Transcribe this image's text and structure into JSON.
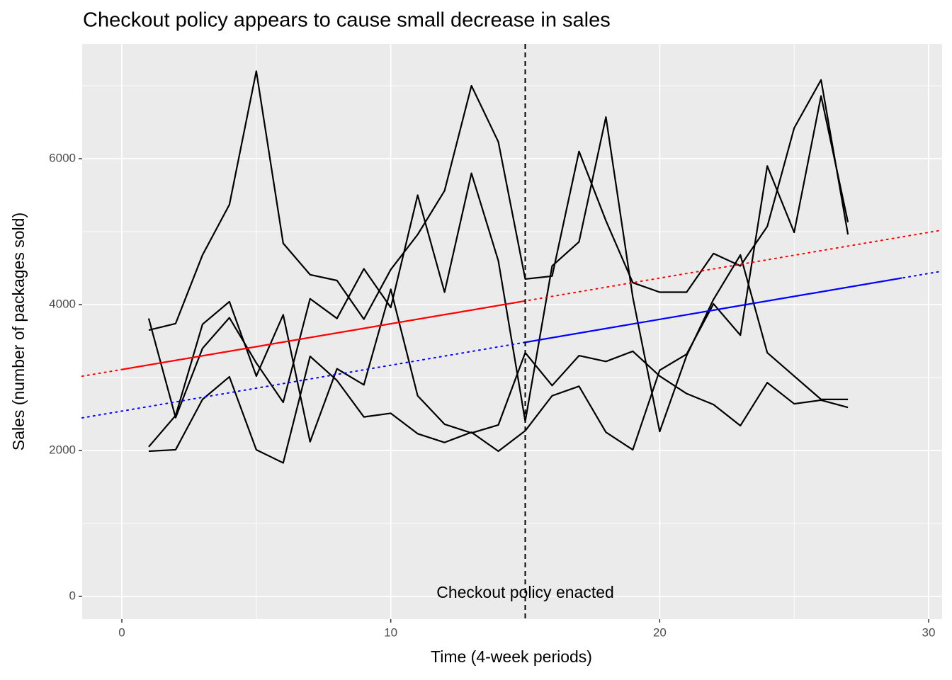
{
  "chart_data": {
    "type": "line",
    "title": "Checkout policy appears to cause small decrease in sales",
    "x_label": "Time (4-week periods)",
    "y_label": "Sales (number of packages sold)",
    "x": [
      1,
      2,
      3,
      4,
      5,
      6,
      7,
      8,
      9,
      10,
      11,
      12,
      13,
      14,
      15,
      16,
      17,
      18,
      19,
      20,
      21,
      22,
      23,
      24,
      25,
      26,
      27
    ],
    "series": [
      {
        "color": "#000000",
        "values": [
          3650,
          3740,
          4680,
          5370,
          7200,
          4840,
          4410,
          4330,
          3800,
          4480,
          4960,
          5560,
          7000,
          6230,
          4350,
          4390,
          6100,
          5150,
          4300,
          4170,
          4170,
          4700,
          4530,
          5070,
          6420,
          7080,
          4960
        ]
      },
      {
        "color": "#000000",
        "values": [
          3810,
          2450,
          3400,
          3820,
          3200,
          2660,
          4080,
          3810,
          4490,
          3960,
          5500,
          4170,
          5800,
          4600,
          2400,
          4530,
          4860,
          6570,
          4100,
          2260,
          3300,
          4070,
          4680,
          3340,
          3020,
          2700,
          2700
        ]
      },
      {
        "color": "#000000",
        "values": [
          2050,
          2480,
          3730,
          4040,
          3020,
          3860,
          2120,
          3120,
          2900,
          4210,
          2750,
          2360,
          2240,
          2350,
          3340,
          2890,
          3300,
          3220,
          3360,
          3020,
          2780,
          2630,
          2340,
          2930,
          2640,
          2690,
          2590
        ]
      },
      {
        "color": "#000000",
        "values": [
          1990,
          2010,
          2700,
          3010,
          2010,
          1830,
          3290,
          2960,
          2460,
          2510,
          2230,
          2110,
          2250,
          1990,
          2270,
          2750,
          2880,
          2250,
          2010,
          3100,
          3320,
          4010,
          3580,
          5900,
          4990,
          6860,
          5130
        ]
      }
    ],
    "trend_lines": [
      {
        "color": "#ff0000",
        "solid": {
          "x": [
            0,
            15
          ],
          "y": [
            3110,
            4050
          ]
        },
        "dotted": {
          "x": [
            -1.475,
            30.5
          ],
          "y": [
            3018,
            5021
          ]
        }
      },
      {
        "color": "#0000ff",
        "solid": {
          "x": [
            15,
            29
          ],
          "y": [
            3483,
            4364
          ]
        },
        "dotted": {
          "x": [
            -1.475,
            30.5
          ],
          "y": [
            2447,
            4458
          ]
        }
      }
    ],
    "vline": {
      "x": 15,
      "color": "#000000"
    },
    "annotation": {
      "text": "Checkout policy enacted",
      "x": 15,
      "y": 0
    },
    "xlim": [
      -1.475,
      30.5
    ],
    "ylim": [
      -311,
      7573
    ],
    "xticks": [
      0,
      10,
      20,
      30
    ],
    "yticks": [
      0,
      2000,
      4000,
      6000
    ],
    "minor_xticks": [
      5,
      15,
      25
    ],
    "minor_yticks": [
      1000,
      3000,
      5000,
      7000
    ],
    "grid": true
  }
}
